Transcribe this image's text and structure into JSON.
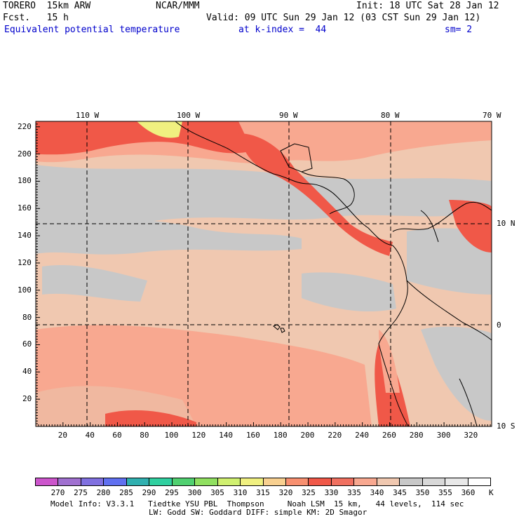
{
  "header": {
    "model": "TORERO  15km ARW",
    "center": "NCAR/MMM",
    "init": "Init: 18 UTC Sat 28 Jan 12",
    "fcst": "Fcst.   15 h",
    "valid": "Valid: 09 UTC Sun 29 Jan 12 (03 CST Sun 29 Jan 12)",
    "field": "Equivalent potential temperature",
    "level": "at k-index =  44",
    "smoothing": "sm= 2"
  },
  "map": {
    "lon_labels": [
      "110 W",
      "100 W",
      "90 W",
      "80 W",
      "70 W"
    ],
    "lat_labels": [
      "10 N",
      "0",
      "10 S"
    ],
    "y_ticks": [
      "220",
      "200",
      "180",
      "160",
      "140",
      "120",
      "100",
      "80",
      "60",
      "40",
      "20"
    ],
    "x_ticks": [
      "20",
      "40",
      "60",
      "80",
      "100",
      "120",
      "140",
      "160",
      "180",
      "200",
      "220",
      "240",
      "260",
      "280",
      "300",
      "320"
    ]
  },
  "colorbar": {
    "unit": "K",
    "labels": [
      "270",
      "275",
      "280",
      "285",
      "290",
      "295",
      "300",
      "305",
      "310",
      "315",
      "320",
      "325",
      "330",
      "335",
      "340",
      "345",
      "350",
      "355",
      "360"
    ],
    "colors": [
      "#cc55cc",
      "#a070d0",
      "#8070e0",
      "#6070f0",
      "#30b0b0",
      "#30d0a0",
      "#50d070",
      "#90e060",
      "#d0f070",
      "#f0f080",
      "#f8d090",
      "#f89070",
      "#f05848",
      "#f07060",
      "#f8a890",
      "#f0c8b0",
      "#c8c8c8",
      "#d8d8d8",
      "#e8e8e8",
      "#ffffff"
    ]
  },
  "footer": {
    "line1": "Model Info: V3.3.1   Tiedtke YSU PBL  Thompson     Noah LSM  15 km,   44 levels,  114 sec",
    "line2": "LW: Godd SW: Goddard DIFF: simple KM: 2D Smagor"
  }
}
